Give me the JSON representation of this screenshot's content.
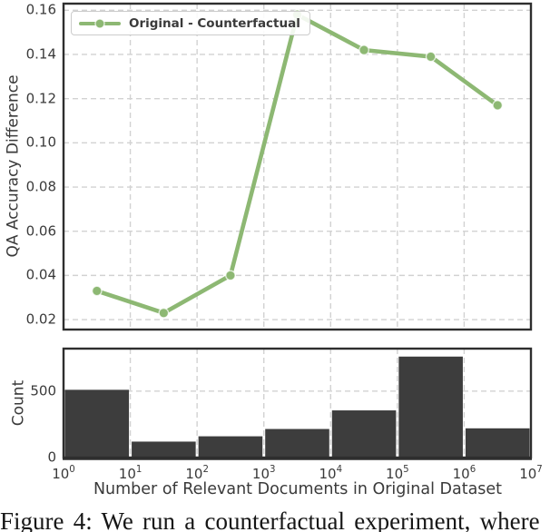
{
  "figure": {
    "caption_visible": "Figure 4: We run a counterfactual experiment, where",
    "colors": {
      "line": "#8db873",
      "marker_edge": "rgba(255,255,255,0.75)",
      "bar": "#3d3d3d",
      "grid": "#d2d2d2",
      "spine": "#2e2e2e",
      "text": "#3a3a3a"
    }
  },
  "chart_data": [
    {
      "type": "line",
      "legend": "Original - Counterfactual",
      "legend_position": "upper left",
      "ylabel": "QA Accuracy Difference",
      "x_scale": "log10",
      "x_exponents": [
        0.5,
        1.5,
        2.5,
        3.5,
        4.5,
        5.5,
        6.5
      ],
      "x_values_approx": [
        3.2,
        32,
        316,
        3162,
        31623,
        316228,
        3162278
      ],
      "y_values": [
        0.033,
        0.023,
        0.04,
        0.158,
        0.142,
        0.139,
        0.117
      ],
      "xlim_exponents": [
        0,
        7
      ],
      "ylim": [
        0.0155,
        0.163
      ],
      "yticks": [
        0.02,
        0.04,
        0.06,
        0.08,
        0.1,
        0.12,
        0.14,
        0.16
      ],
      "ytick_labels": [
        "0.02",
        "0.04",
        "0.06",
        "0.08",
        "0.10",
        "0.12",
        "0.14",
        "0.16"
      ],
      "grid": true
    },
    {
      "type": "bar",
      "ylabel": "Count",
      "xlabel": "Number of Relevant Documents in Original Dataset",
      "x_scale": "log10",
      "bin_edge_exponents": [
        0,
        1,
        2,
        3,
        4,
        5,
        6,
        7
      ],
      "counts": [
        510,
        120,
        160,
        215,
        355,
        760,
        220
      ],
      "xtick_exponents": [
        0,
        1,
        2,
        3,
        4,
        5,
        6,
        7
      ],
      "xtick_base": "10",
      "ylim": [
        0,
        820
      ],
      "yticks": [
        0,
        500
      ],
      "ytick_labels": [
        "0",
        "500"
      ],
      "grid": true
    }
  ]
}
